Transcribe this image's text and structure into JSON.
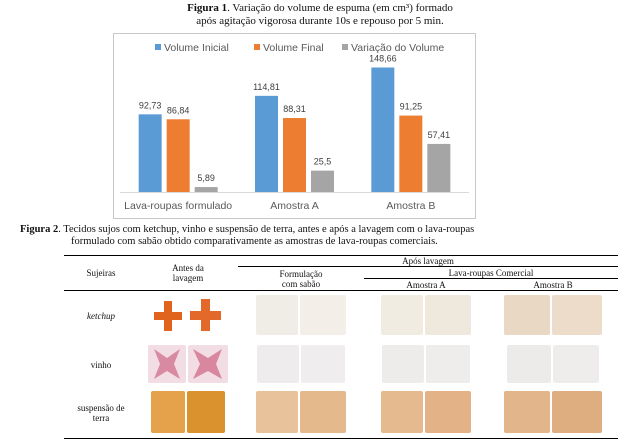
{
  "figure1": {
    "label": "Figura 1",
    "caption_line1": ". Variação do volume de espuma (em cm³) formado",
    "caption_line2": "após agitação vigorosa durante 10s e repouso por 5 min."
  },
  "chart_data": {
    "type": "bar",
    "categories": [
      "Lava-roupas formulado",
      "Amostra A",
      "Amostra B"
    ],
    "series": [
      {
        "name": "Volume Inicial",
        "values": [
          92.73,
          114.81,
          148.66
        ],
        "labels": [
          "92,73",
          "114,81",
          "148,66"
        ],
        "color": "#5b9bd5"
      },
      {
        "name": "Volume Final",
        "values": [
          86.84,
          88.31,
          91.25
        ],
        "labels": [
          "86,84",
          "88,31",
          "91,25"
        ],
        "color": "#ed7d31"
      },
      {
        "name": "Variação do Volume",
        "values": [
          5.89,
          25.5,
          57.41
        ],
        "labels": [
          "5,89",
          "25,5",
          "57,41"
        ],
        "color": "#a5a5a5"
      }
    ],
    "ylim": [
      0,
      160
    ],
    "legend": "top",
    "grid": false
  },
  "figure2": {
    "label": "Figura 2",
    "caption_line1": ". Tecidos sujos com ketchup, vinho e suspensão de terra, antes e após a lavagem com o lava-roupas",
    "caption_line2": "formulado com sabão obtido comparativamente as amostras de lava-roupas comerciais."
  },
  "table": {
    "col_sujeiras": "Sujeiras",
    "col_antes": "Antes da lavagem",
    "col_apos": "Após lavagem",
    "col_formulacao": "Formulação com sabão",
    "col_comercial": "Lava-roupas Comercial",
    "col_amostra_a": "Amostra A",
    "col_amostra_b": "Amostra B",
    "rows": [
      {
        "label": "ketchup"
      },
      {
        "label": "vinho"
      },
      {
        "label": "suspensão de terra"
      }
    ]
  }
}
